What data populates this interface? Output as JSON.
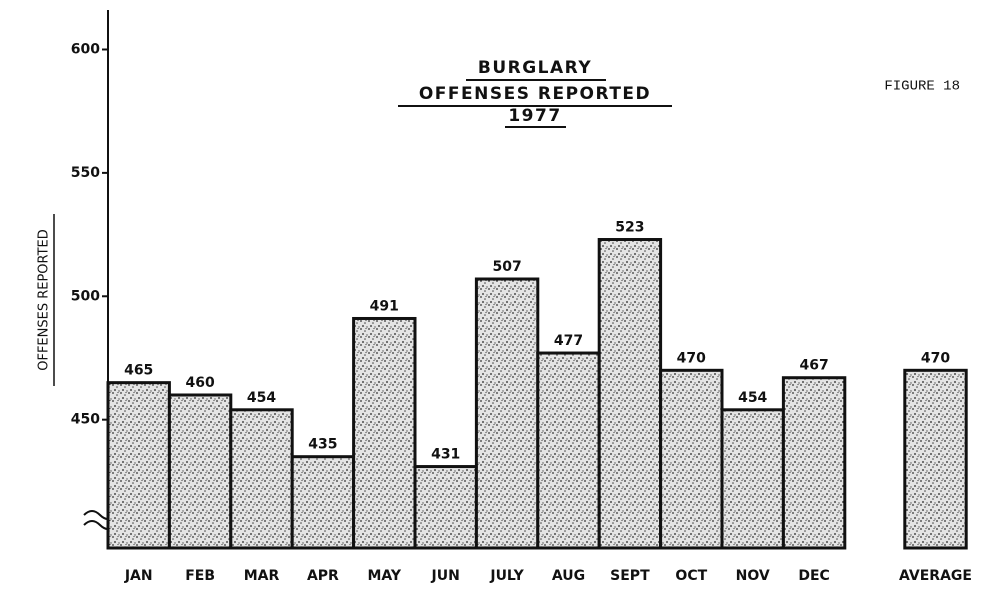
{
  "chart_data": {
    "type": "bar",
    "title": [
      "BURGLARY",
      "OFFENSES REPORTED",
      "1977"
    ],
    "annotation": "FIGURE 18",
    "ylabel": "OFFENSES REPORTED",
    "categories": [
      "JAN",
      "FEB",
      "MAR",
      "APR",
      "MAY",
      "JUN",
      "JULY",
      "AUG",
      "SEPT",
      "OCT",
      "NOV",
      "DEC",
      "AVERAGE"
    ],
    "values": [
      465,
      460,
      454,
      435,
      491,
      431,
      507,
      477,
      523,
      470,
      454,
      467,
      470
    ],
    "ylim": [
      398,
      616
    ],
    "yticks": [
      450,
      500,
      550,
      600
    ],
    "grid": false
  }
}
